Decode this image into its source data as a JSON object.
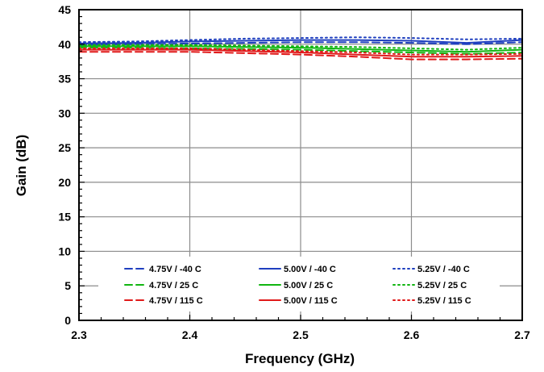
{
  "chart_data": {
    "type": "line",
    "title": "",
    "xlabel": "Frequency (GHz)",
    "ylabel": "Gain (dB)",
    "xlim": [
      2.3,
      2.7
    ],
    "ylim": [
      0,
      45
    ],
    "xticks": [
      "2.3",
      "2.4",
      "2.5",
      "2.6",
      "2.7"
    ],
    "yticks": [
      "0",
      "5",
      "10",
      "15",
      "20",
      "25",
      "30",
      "35",
      "40",
      "45"
    ],
    "grid": true,
    "legend_placement": "bottom-center",
    "x": [
      2.3,
      2.35,
      2.4,
      2.45,
      2.5,
      2.55,
      2.6,
      2.65,
      2.7
    ],
    "series": [
      {
        "name": "4.75V / -40 C",
        "color": "#1f3fbf",
        "dash": "dashed",
        "values": [
          39.9,
          40.0,
          40.1,
          40.2,
          40.3,
          40.3,
          40.2,
          40.0,
          40.3
        ]
      },
      {
        "name": "5.00V / -40 C",
        "color": "#1f3fbf",
        "dash": "solid",
        "values": [
          40.1,
          40.2,
          40.4,
          40.5,
          40.6,
          40.6,
          40.5,
          40.2,
          40.6
        ]
      },
      {
        "name": "5.25V / -40 C",
        "color": "#1f3fbf",
        "dash": "dotted",
        "values": [
          40.3,
          40.4,
          40.6,
          40.8,
          40.9,
          41.0,
          40.9,
          40.7,
          40.8
        ]
      },
      {
        "name": "4.75V / 25 C",
        "color": "#11b511",
        "dash": "dashed",
        "values": [
          39.5,
          39.5,
          39.4,
          39.3,
          39.2,
          39.0,
          38.8,
          38.6,
          38.8
        ]
      },
      {
        "name": "5.00V / 25 C",
        "color": "#11b511",
        "dash": "solid",
        "values": [
          39.7,
          39.7,
          39.7,
          39.6,
          39.5,
          39.3,
          39.1,
          38.9,
          39.2
        ]
      },
      {
        "name": "5.25V / 25 C",
        "color": "#11b511",
        "dash": "dotted",
        "values": [
          39.9,
          39.9,
          39.9,
          39.8,
          39.7,
          39.6,
          39.4,
          39.2,
          39.5
        ]
      },
      {
        "name": "4.75V / 115 C",
        "color": "#e01a1a",
        "dash": "dashed",
        "values": [
          38.9,
          38.9,
          38.9,
          38.7,
          38.5,
          38.2,
          37.8,
          37.8,
          37.9
        ]
      },
      {
        "name": "5.00V / 115 C",
        "color": "#e01a1a",
        "dash": "solid",
        "values": [
          39.2,
          39.2,
          39.2,
          39.0,
          38.8,
          38.5,
          38.2,
          38.2,
          38.3
        ]
      },
      {
        "name": "5.25V / 115 C",
        "color": "#e01a1a",
        "dash": "dotted",
        "values": [
          39.4,
          39.4,
          39.4,
          39.2,
          39.0,
          38.8,
          38.5,
          38.5,
          38.6
        ]
      }
    ]
  }
}
